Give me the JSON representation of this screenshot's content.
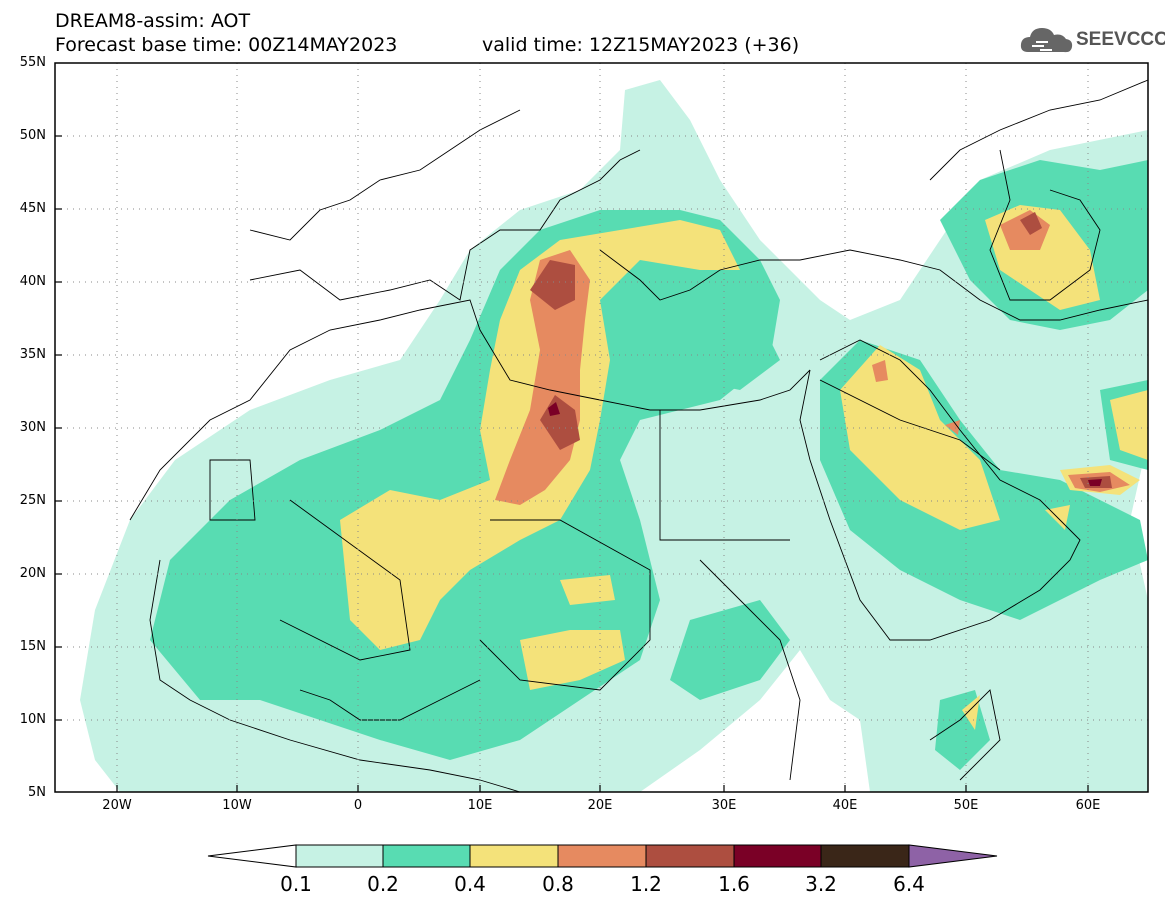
{
  "header": {
    "title_line1": "DREAM8-assim: AOT",
    "title_line2": "Forecast base time: 00Z14MAY2023",
    "valid_time": "valid time: 12Z15MAY2023 (+36)"
  },
  "logo": {
    "text": "SEEVCCC",
    "icon": "cloud-icon"
  },
  "map": {
    "lon_range": [
      -25,
      65
    ],
    "lat_range": [
      5,
      55
    ],
    "lat_labels": [
      "55N",
      "50N",
      "45N",
      "40N",
      "35N",
      "30N",
      "25N",
      "20N",
      "15N",
      "10N",
      "5N"
    ],
    "lon_labels": [
      "20W",
      "10W",
      "0",
      "10E",
      "20E",
      "30E",
      "40E",
      "50E",
      "60E"
    ],
    "gridlines": "dotted"
  },
  "colorbar": {
    "labels": [
      "0.1",
      "0.2",
      "0.4",
      "0.8",
      "1.2",
      "1.6",
      "3.2",
      "6.4"
    ],
    "colors": [
      "#ffffff",
      "#c6f2e4",
      "#58dcb2",
      "#f4e27a",
      "#e68a60",
      "#ad4e40",
      "#7a0026",
      "#3a2618",
      "#8e62a6"
    ]
  }
}
